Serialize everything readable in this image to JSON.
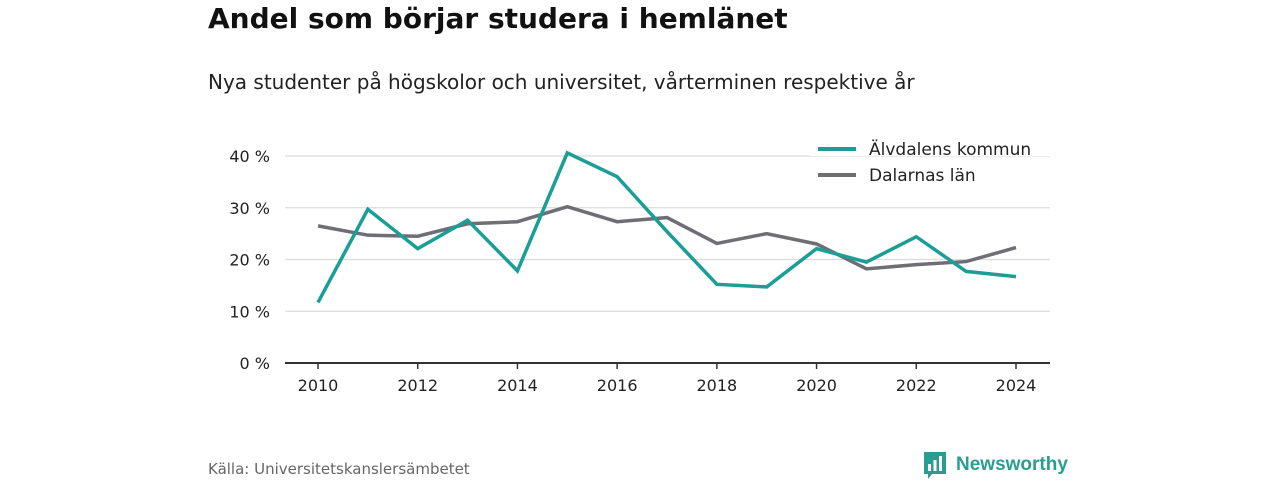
{
  "title": "Andel som börjar studera i hemlänet",
  "subtitle": "Nya studenter på högskolor och universitet, vårterminen respektive år",
  "source": "Källa: Universitetskanslersämbetet",
  "brand": "Newsworthy",
  "colors": {
    "alvdalen": "#1a9e96",
    "dalarna": "#6e6e74",
    "brand": "#2a9d91",
    "grid": "#dcdcdc",
    "axis": "#333333"
  },
  "chart_data": {
    "type": "line",
    "x": [
      2010,
      2011,
      2012,
      2013,
      2014,
      2015,
      2016,
      2017,
      2018,
      2019,
      2020,
      2021,
      2022,
      2023,
      2024
    ],
    "xticks": [
      "2010",
      "2012",
      "2014",
      "2016",
      "2018",
      "2020",
      "2022",
      "2024"
    ],
    "yticks": [
      "0 %",
      "10 %",
      "20 %",
      "30 %",
      "40 %"
    ],
    "ylim": [
      0,
      40
    ],
    "grid": true,
    "legend": "top-right",
    "series": [
      {
        "name": "Älvdalens kommun",
        "color": "#1a9e96",
        "values": [
          11.7,
          29.7,
          22.1,
          27.6,
          17.8,
          40.6,
          36.0,
          25.4,
          15.2,
          14.7,
          22.1,
          19.5,
          24.4,
          17.7,
          16.7
        ]
      },
      {
        "name": "Dalarnas län",
        "color": "#6e6e74",
        "values": [
          26.5,
          24.7,
          24.5,
          26.9,
          27.3,
          30.2,
          27.3,
          28.1,
          23.1,
          25.0,
          23.0,
          18.2,
          19.0,
          19.6,
          22.3
        ]
      }
    ]
  }
}
